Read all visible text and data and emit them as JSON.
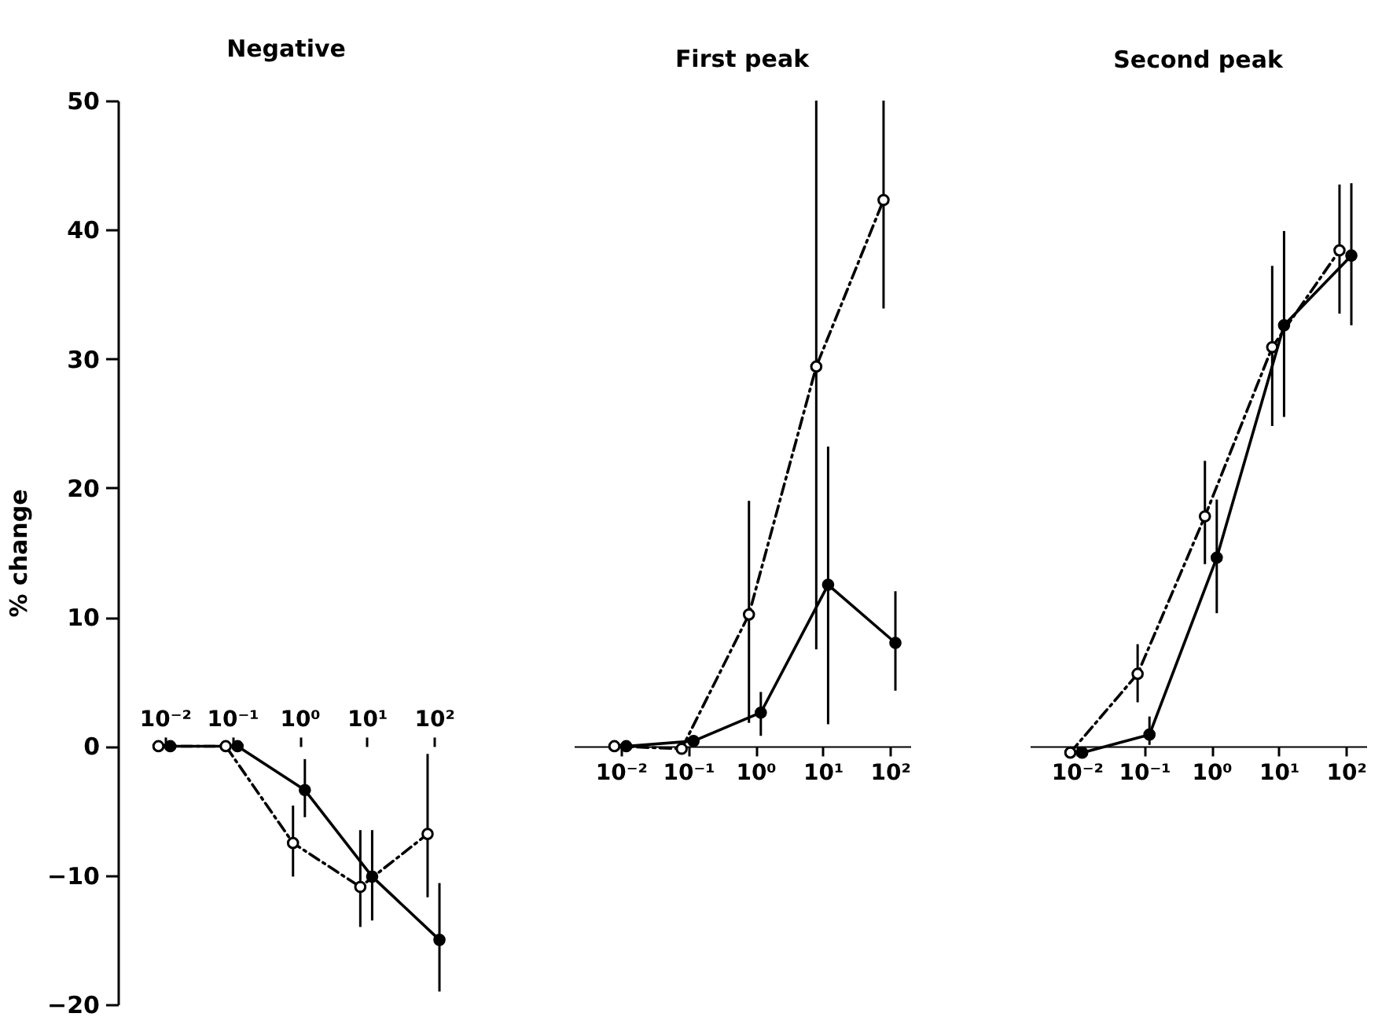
{
  "chart_data": [
    {
      "type": "line",
      "title": "Negative",
      "ylabel": "% change",
      "log": "x",
      "marker": "circle",
      "tick_labels": "xy",
      "xlim": [
        0.002,
        200
      ],
      "xticks": [
        {
          "value": 0.01,
          "label": "10⁻²"
        },
        {
          "value": 0.1,
          "label": "10⁻¹"
        },
        {
          "value": 1,
          "label": "10⁰"
        },
        {
          "value": 10,
          "label": "10¹"
        },
        {
          "value": 100,
          "label": "10²"
        }
      ],
      "ylim": [
        -20,
        50
      ],
      "yticks": [
        -20,
        -10,
        0,
        10,
        20,
        30,
        40,
        50
      ],
      "series": [
        {
          "color": "#000000",
          "line_style": "dashed",
          "x": [
            0.008,
            0.08,
            0.8,
            8,
            80
          ],
          "values": [
            0,
            0,
            -7.5,
            -10.9,
            -6.8
          ],
          "errors": [
            null,
            null,
            [
              -10.1,
              -4.6
            ],
            [
              -14,
              -6.5
            ],
            [
              -11.7,
              -0.6
            ]
          ]
        },
        {
          "color": "#000000",
          "line_style": "solid",
          "x": [
            0.012,
            0.12,
            1.2,
            12,
            120
          ],
          "values": [
            0,
            0,
            -3.4,
            -10.1,
            -15
          ],
          "errors": [
            null,
            null,
            [
              -5.5,
              -1
            ],
            [
              -13.5,
              -6.5
            ],
            [
              -19,
              -10.6
            ]
          ]
        }
      ]
    },
    {
      "type": "line",
      "title": "First peak",
      "log": "x",
      "marker": "circle",
      "tick_labels": "x",
      "xlim": [
        0.002,
        200
      ],
      "xticks": [
        {
          "value": 0.01,
          "label": "10⁻²"
        },
        {
          "value": 0.1,
          "label": "10⁻¹"
        },
        {
          "value": 1,
          "label": "10⁰"
        },
        {
          "value": 10,
          "label": "10¹"
        },
        {
          "value": 100,
          "label": "10²"
        }
      ],
      "ylim": [
        -20,
        50
      ],
      "series": [
        {
          "color": "#000000",
          "line_style": "dashed",
          "x": [
            0.008,
            0.08,
            0.8,
            8,
            80
          ],
          "values": [
            0,
            -0.2,
            10.2,
            29.4,
            42.3
          ],
          "errors": [
            null,
            null,
            [
              1.8,
              19
            ],
            [
              7.5,
              50
            ],
            [
              33.9,
              50
            ]
          ]
        },
        {
          "color": "#000000",
          "line_style": "solid",
          "x": [
            0.012,
            0.12,
            1.2,
            12,
            120
          ],
          "values": [
            0,
            0.4,
            2.6,
            12.5,
            8
          ],
          "errors": [
            null,
            null,
            [
              0.8,
              4.2
            ],
            [
              1.7,
              23.2
            ],
            [
              4.3,
              12
            ]
          ]
        }
      ]
    },
    {
      "type": "line",
      "title": "Second peak",
      "log": "x",
      "marker": "circle",
      "tick_labels": "x",
      "xlim": [
        0.002,
        200
      ],
      "xticks": [
        {
          "value": 0.01,
          "label": "10⁻²"
        },
        {
          "value": 0.1,
          "label": "10⁻¹"
        },
        {
          "value": 1,
          "label": "10⁰"
        },
        {
          "value": 10,
          "label": "10¹"
        },
        {
          "value": 100,
          "label": "10²"
        }
      ],
      "ylim": [
        -20,
        50
      ],
      "series": [
        {
          "color": "#000000",
          "line_style": "dashed",
          "x": [
            0.008,
            0.08,
            0.8,
            8,
            80
          ],
          "values": [
            -0.5,
            5.6,
            17.8,
            30.9,
            38.4
          ],
          "errors": [
            null,
            [
              3.4,
              7.9
            ],
            [
              14.1,
              22.1
            ],
            [
              24.8,
              37.2
            ],
            [
              33.5,
              43.5
            ]
          ]
        },
        {
          "color": "#000000",
          "line_style": "solid",
          "x": [
            0.012,
            0.12,
            1.2,
            12,
            120
          ],
          "values": [
            -0.5,
            0.9,
            14.6,
            32.6,
            38
          ],
          "errors": [
            null,
            [
              0.1,
              2.3
            ],
            [
              10.3,
              19.1
            ],
            [
              25.5,
              39.9
            ],
            [
              32.6,
              43.6
            ]
          ]
        }
      ]
    }
  ]
}
